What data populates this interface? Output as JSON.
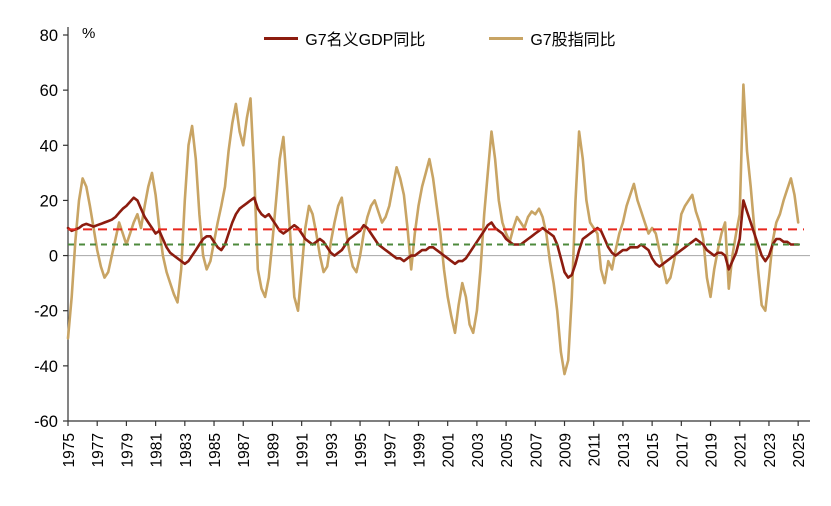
{
  "chart": {
    "unit_label": "%",
    "background": "#ffffff",
    "axis_color": "#333333",
    "zero_line_color": "#a6a6a6"
  },
  "chart_data": {
    "type": "line",
    "title": "",
    "xlabel": "",
    "ylabel": "%",
    "ylim": [
      -60,
      80
    ],
    "yticks": [
      80,
      60,
      40,
      20,
      0,
      -20,
      -40,
      -60
    ],
    "xlim": [
      1975,
      2025.4
    ],
    "xticks": [
      1975,
      1977,
      1979,
      1981,
      1983,
      1985,
      1987,
      1989,
      1991,
      1993,
      1995,
      1997,
      1999,
      2001,
      2003,
      2005,
      2007,
      2009,
      2011,
      2013,
      2015,
      2017,
      2019,
      2021,
      2023,
      2025
    ],
    "x_start": 1975,
    "x_step": 0.25,
    "x_frequency": "quarterly",
    "legend_position": "top",
    "grid": "zero-line-only",
    "series": [
      {
        "name": "G7名义GDP同比",
        "color": "#8c1c0f",
        "values": [
          10,
          9,
          9.5,
          10,
          11,
          11.5,
          11,
          10.5,
          11,
          11.5,
          12,
          12.5,
          13,
          14,
          15.5,
          17,
          18,
          19.5,
          21,
          20,
          17,
          14,
          12,
          10,
          8,
          9,
          6,
          3,
          1,
          0,
          -1,
          -2,
          -3,
          -2,
          0,
          2,
          4,
          6,
          7,
          7,
          5,
          3,
          2,
          4,
          8,
          12,
          15,
          17,
          18,
          19,
          20,
          21,
          17,
          15,
          14,
          15,
          13,
          11,
          9,
          8,
          9,
          10,
          11,
          10,
          8,
          6,
          5,
          4,
          5,
          6,
          5,
          3,
          1,
          0,
          1,
          2,
          4,
          6,
          7,
          8,
          9,
          11,
          10,
          8,
          6,
          4,
          3,
          2,
          1,
          0,
          -1,
          -1,
          -2,
          -1,
          0,
          0,
          1,
          2,
          2,
          3,
          3,
          2,
          1,
          0,
          -1,
          -2,
          -3,
          -2,
          -2,
          -1,
          1,
          3,
          5,
          7,
          9,
          11,
          12,
          10,
          9,
          8,
          6,
          5,
          4,
          4,
          4,
          5,
          6,
          7,
          8,
          9,
          10,
          9,
          8,
          7,
          4,
          -1,
          -6,
          -8,
          -7,
          -3,
          2,
          6,
          7,
          8,
          9,
          10,
          9,
          6,
          3,
          1,
          0,
          1,
          2,
          2,
          3,
          3,
          3,
          4,
          3,
          2,
          -1,
          -3,
          -4,
          -3,
          -2,
          -1,
          0,
          1,
          2,
          3,
          4,
          5,
          6,
          5,
          4,
          2,
          1,
          0,
          1,
          1,
          0,
          -5,
          -2,
          1,
          6,
          20,
          16,
          12,
          8,
          4,
          0,
          -2,
          0,
          4,
          6,
          6,
          5,
          5,
          4,
          4,
          4
        ]
      },
      {
        "name": "G7股指同比",
        "color": "#c8a464",
        "values": [
          -30,
          -15,
          5,
          20,
          28,
          25,
          18,
          10,
          2,
          -4,
          -8,
          -6,
          0,
          6,
          12,
          8,
          4,
          8,
          12,
          15,
          10,
          18,
          25,
          30,
          22,
          10,
          0,
          -6,
          -10,
          -14,
          -17,
          -5,
          20,
          40,
          47,
          35,
          15,
          0,
          -5,
          -2,
          5,
          12,
          18,
          25,
          38,
          48,
          55,
          45,
          40,
          50,
          57,
          30,
          -5,
          -12,
          -15,
          -8,
          5,
          20,
          35,
          43,
          25,
          5,
          -15,
          -20,
          -5,
          10,
          18,
          15,
          8,
          0,
          -6,
          -4,
          5,
          12,
          18,
          21,
          10,
          2,
          -4,
          -6,
          0,
          8,
          14,
          18,
          20,
          16,
          12,
          14,
          18,
          25,
          32,
          28,
          22,
          10,
          -5,
          8,
          18,
          25,
          30,
          35,
          28,
          18,
          8,
          -5,
          -15,
          -22,
          -28,
          -18,
          -10,
          -15,
          -25,
          -28,
          -20,
          -5,
          15,
          30,
          45,
          35,
          20,
          12,
          8,
          5,
          10,
          14,
          12,
          10,
          14,
          16,
          15,
          17,
          14,
          8,
          -2,
          -10,
          -20,
          -35,
          -43,
          -38,
          -15,
          20,
          45,
          35,
          20,
          12,
          10,
          8,
          -5,
          -10,
          -2,
          -5,
          2,
          8,
          12,
          18,
          22,
          26,
          20,
          16,
          12,
          8,
          10,
          8,
          2,
          -4,
          -10,
          -8,
          -2,
          5,
          15,
          18,
          20,
          22,
          16,
          12,
          6,
          -8,
          -15,
          -5,
          2,
          8,
          12,
          -12,
          0,
          8,
          15,
          62,
          38,
          25,
          10,
          -5,
          -18,
          -20,
          -8,
          5,
          12,
          15,
          20,
          24,
          28,
          22,
          12
        ]
      }
    ],
    "reference_lines": [
      {
        "name": "gdp-mean-dashed",
        "value": 9.5,
        "color": "#e8261d",
        "style": "dashed"
      },
      {
        "name": "stock-mean-dashed",
        "value": 4,
        "color": "#4e8a3c",
        "style": "dashed"
      }
    ]
  }
}
